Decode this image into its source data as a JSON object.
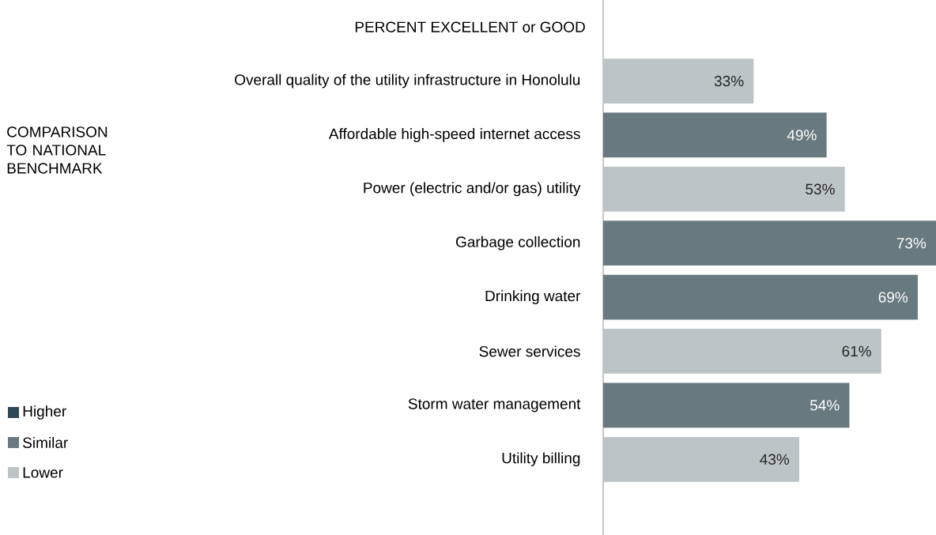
{
  "chart_data": {
    "type": "bar",
    "orientation": "horizontal",
    "title": "PERCENT EXCELLENT or GOOD",
    "categories": [
      "Overall quality of the utility infrastructure in Honolulu",
      "Affordable high-speed internet access",
      "Power (electric and/or gas) utility",
      "Garbage collection",
      "Drinking water",
      "Sewer services",
      "Storm water management",
      "Utility billing"
    ],
    "series": [
      {
        "name": "Higher",
        "color": "#2f4756",
        "values": [
          null,
          null,
          null,
          null,
          null,
          null,
          null,
          null
        ]
      },
      {
        "name": "Similar",
        "color": "#687a80",
        "values": [
          null,
          49,
          null,
          73,
          69,
          null,
          54,
          null
        ],
        "value_labels": [
          null,
          "49%",
          null,
          "73%",
          "69%",
          null,
          "54%",
          null
        ]
      },
      {
        "name": "Lower",
        "color": "#bcc4c6",
        "values": [
          33,
          null,
          53,
          null,
          null,
          61,
          null,
          43
        ],
        "value_labels": [
          "33%",
          null,
          "53%",
          null,
          null,
          "61%",
          null,
          "43%"
        ]
      }
    ],
    "xlim": [
      0,
      73
    ],
    "legend": "left",
    "legend_title": "COMPARISON TO NATIONAL BENCHMARK"
  }
}
